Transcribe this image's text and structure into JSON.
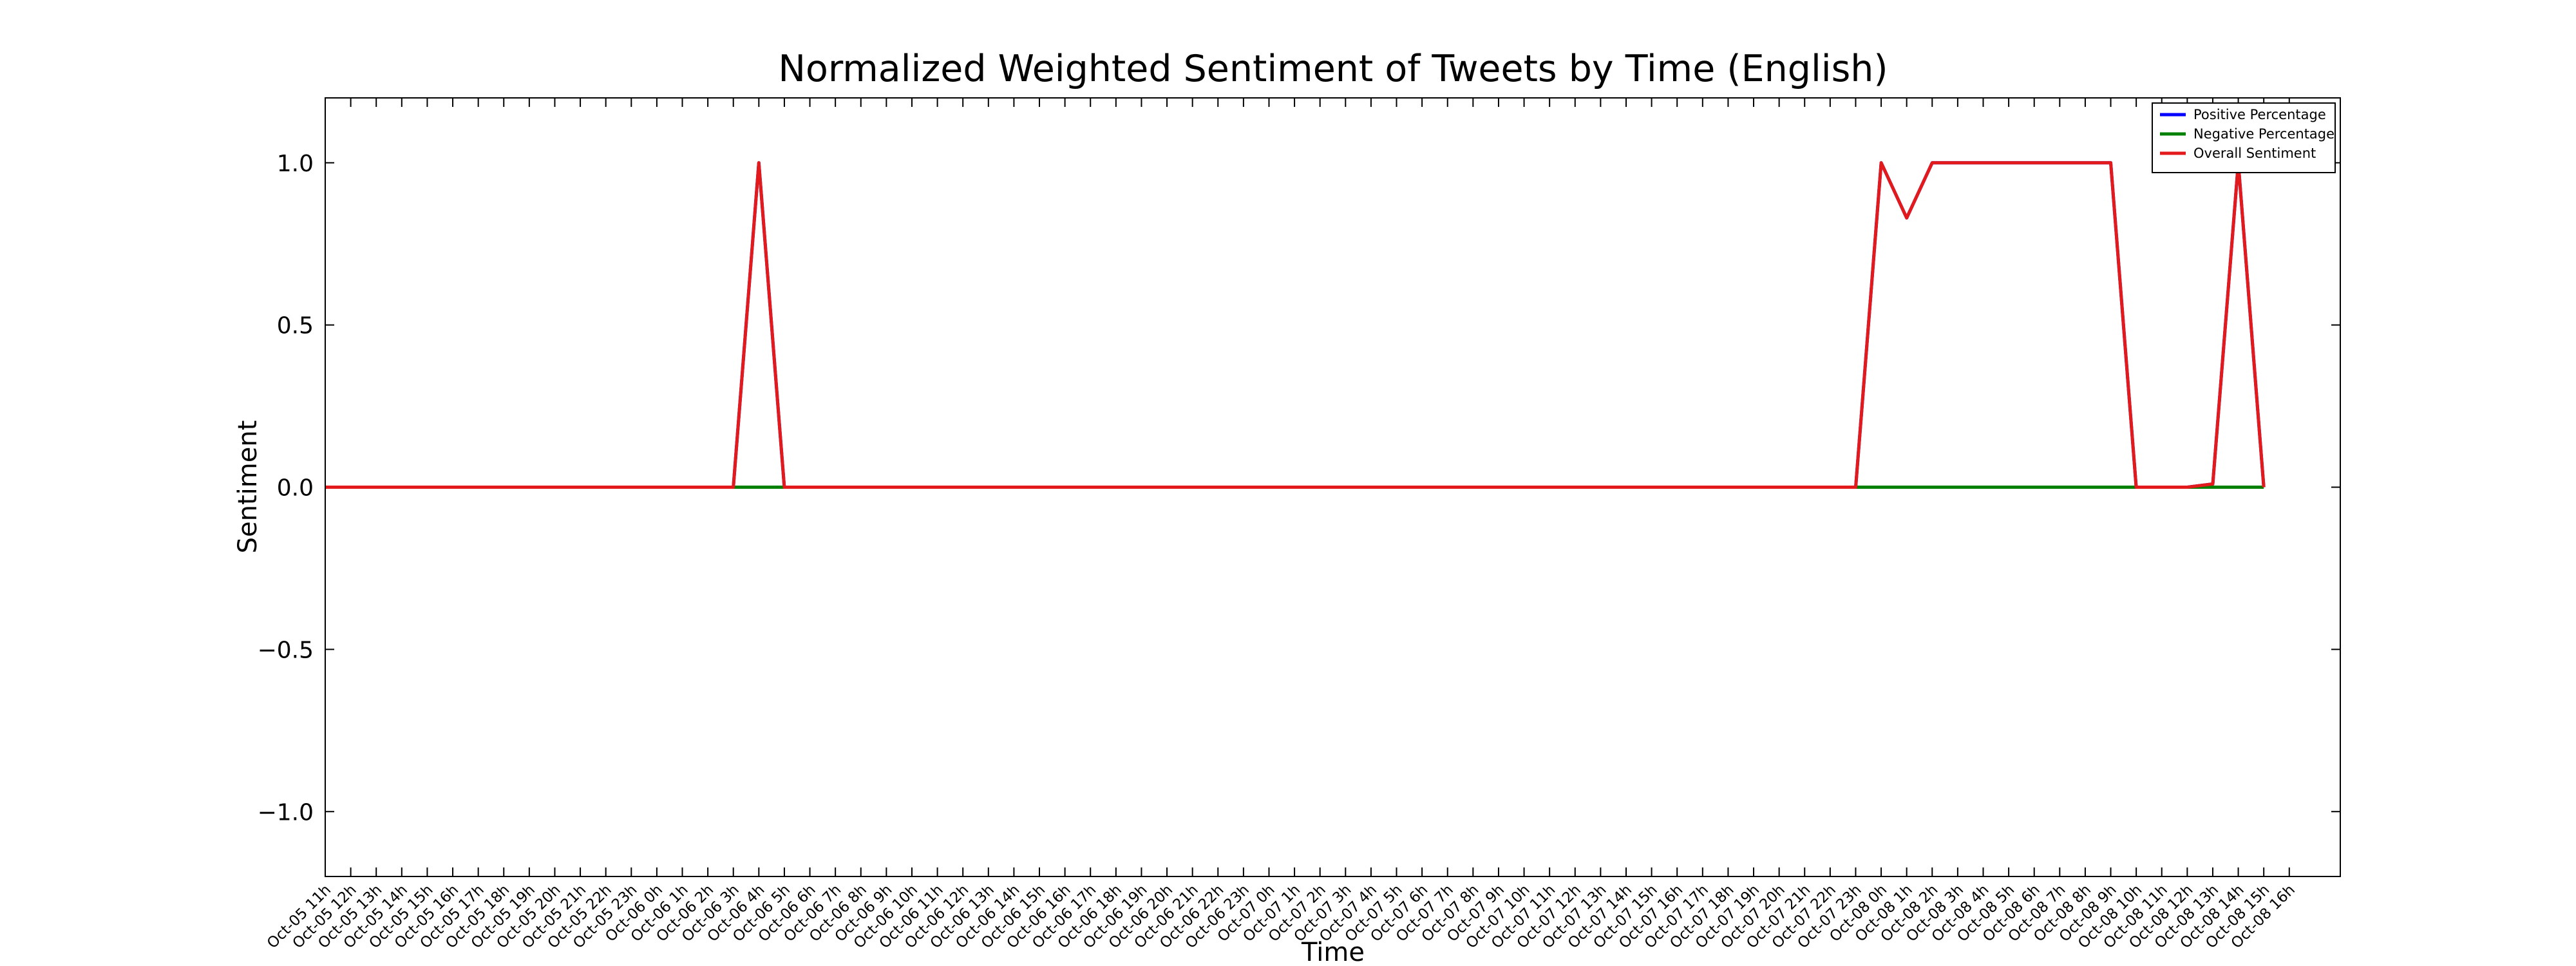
{
  "chart_data": {
    "type": "line",
    "title": "Normalized Weighted Sentiment of Tweets by Time (English)",
    "xlabel": "Time",
    "ylabel": "Sentiment",
    "categories": [
      "Oct-05 11h",
      "Oct-05 12h",
      "Oct-05 13h",
      "Oct-05 14h",
      "Oct-05 15h",
      "Oct-05 16h",
      "Oct-05 17h",
      "Oct-05 18h",
      "Oct-05 19h",
      "Oct-05 20h",
      "Oct-05 21h",
      "Oct-05 22h",
      "Oct-05 23h",
      "Oct-06 0h",
      "Oct-06 1h",
      "Oct-06 2h",
      "Oct-06 3h",
      "Oct-06 4h",
      "Oct-06 5h",
      "Oct-06 6h",
      "Oct-06 7h",
      "Oct-06 8h",
      "Oct-06 9h",
      "Oct-06 10h",
      "Oct-06 11h",
      "Oct-06 12h",
      "Oct-06 13h",
      "Oct-06 14h",
      "Oct-06 15h",
      "Oct-06 16h",
      "Oct-06 17h",
      "Oct-06 18h",
      "Oct-06 19h",
      "Oct-06 20h",
      "Oct-06 21h",
      "Oct-06 22h",
      "Oct-06 23h",
      "Oct-07 0h",
      "Oct-07 1h",
      "Oct-07 2h",
      "Oct-07 3h",
      "Oct-07 4h",
      "Oct-07 5h",
      "Oct-07 6h",
      "Oct-07 7h",
      "Oct-07 8h",
      "Oct-07 9h",
      "Oct-07 10h",
      "Oct-07 11h",
      "Oct-07 12h",
      "Oct-07 13h",
      "Oct-07 14h",
      "Oct-07 15h",
      "Oct-07 16h",
      "Oct-07 17h",
      "Oct-07 18h",
      "Oct-07 19h",
      "Oct-07 20h",
      "Oct-07 21h",
      "Oct-07 22h",
      "Oct-07 23h",
      "Oct-08 0h",
      "Oct-08 1h",
      "Oct-08 2h",
      "Oct-08 3h",
      "Oct-08 4h",
      "Oct-08 5h",
      "Oct-08 6h",
      "Oct-08 7h",
      "Oct-08 8h",
      "Oct-08 9h",
      "Oct-08 10h",
      "Oct-08 11h",
      "Oct-08 12h",
      "Oct-08 13h",
      "Oct-08 14h",
      "Oct-08 15h",
      "Oct-08 16h"
    ],
    "series": [
      {
        "name": "Positive Percentage",
        "color": "#0000ff",
        "values": [
          0,
          0,
          0,
          0,
          0,
          0,
          0,
          0,
          0,
          0,
          0,
          0,
          0,
          0,
          0,
          0,
          0,
          1,
          0,
          0,
          0,
          0,
          0,
          0,
          0,
          0,
          0,
          0,
          0,
          0,
          0,
          0,
          0,
          0,
          0,
          0,
          0,
          0,
          0,
          0,
          0,
          0,
          0,
          0,
          0,
          0,
          0,
          0,
          0,
          0,
          0,
          0,
          0,
          0,
          0,
          0,
          0,
          0,
          0,
          0,
          0,
          1,
          0.83,
          1,
          1,
          1,
          1,
          1,
          1,
          1,
          1,
          0,
          0,
          0,
          0.01,
          1,
          0,
          null
        ]
      },
      {
        "name": "Negative Percentage",
        "color": "#008000",
        "values": [
          0,
          0,
          0,
          0,
          0,
          0,
          0,
          0,
          0,
          0,
          0,
          0,
          0,
          0,
          0,
          0,
          0,
          0,
          0,
          0,
          0,
          0,
          0,
          0,
          0,
          0,
          0,
          0,
          0,
          0,
          0,
          0,
          0,
          0,
          0,
          0,
          0,
          0,
          0,
          0,
          0,
          0,
          0,
          0,
          0,
          0,
          0,
          0,
          0,
          0,
          0,
          0,
          0,
          0,
          0,
          0,
          0,
          0,
          0,
          0,
          0,
          0,
          0,
          0,
          0,
          0,
          0,
          0,
          0,
          0,
          0,
          0,
          0,
          0,
          0,
          0,
          0,
          null
        ]
      },
      {
        "name": "Overall Sentiment",
        "color": "#e31a1c",
        "values": [
          0,
          0,
          0,
          0,
          0,
          0,
          0,
          0,
          0,
          0,
          0,
          0,
          0,
          0,
          0,
          0,
          0,
          1,
          0,
          0,
          0,
          0,
          0,
          0,
          0,
          0,
          0,
          0,
          0,
          0,
          0,
          0,
          0,
          0,
          0,
          0,
          0,
          0,
          0,
          0,
          0,
          0,
          0,
          0,
          0,
          0,
          0,
          0,
          0,
          0,
          0,
          0,
          0,
          0,
          0,
          0,
          0,
          0,
          0,
          0,
          0,
          1,
          0.83,
          1,
          1,
          1,
          1,
          1,
          1,
          1,
          1,
          0,
          0,
          0,
          0.01,
          1,
          0,
          null
        ]
      }
    ],
    "xlim": [
      0,
      79
    ],
    "ylim": [
      -1.2,
      1.2
    ],
    "yticks": [
      {
        "value": -1.0,
        "label": "−1.0"
      },
      {
        "value": -0.5,
        "label": "−0.5"
      },
      {
        "value": 0.0,
        "label": "0.0"
      },
      {
        "value": 0.5,
        "label": "0.5"
      },
      {
        "value": 1.0,
        "label": "1.0"
      }
    ],
    "grid": false,
    "legend": "upper right"
  }
}
